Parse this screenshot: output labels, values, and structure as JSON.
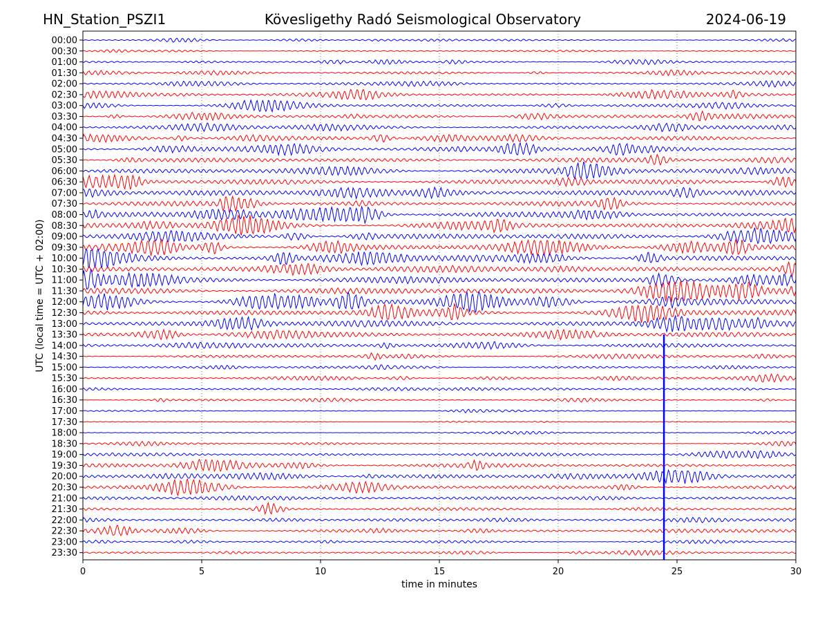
{
  "header": {
    "station": "HN_Station_PSZI1",
    "observatory": "Kövesligethy Radó Seismological Observatory",
    "date": "2024-06-19"
  },
  "chart_data": {
    "type": "line",
    "subtype": "helicorder",
    "xlabel": "time in minutes",
    "ylabel": "UTC (local time = UTC + 02:00)",
    "xlim": [
      0,
      30
    ],
    "x_ticks": [
      0,
      5,
      10,
      15,
      20,
      25,
      30
    ],
    "x_tick_labels": [
      "0",
      "5",
      "10",
      "15",
      "20",
      "25",
      "30"
    ],
    "grid": "vertical-dotted",
    "row_labels": [
      "00:00",
      "00:30",
      "01:00",
      "01:30",
      "02:00",
      "02:30",
      "03:00",
      "03:30",
      "04:00",
      "04:30",
      "05:00",
      "05:30",
      "06:00",
      "06:30",
      "07:00",
      "07:30",
      "08:00",
      "08:30",
      "09:00",
      "09:30",
      "10:00",
      "10:30",
      "11:00",
      "11:30",
      "12:00",
      "12:30",
      "13:00",
      "13:30",
      "14:00",
      "14:30",
      "15:00",
      "15:30",
      "16:00",
      "16:30",
      "17:00",
      "17:30",
      "18:00",
      "18:30",
      "19:00",
      "19:30",
      "20:00",
      "20:30",
      "21:00",
      "21:30",
      "22:00",
      "22:30",
      "23:00",
      "23:30"
    ],
    "trace_colors": [
      "#0000ff",
      "#ff0000"
    ],
    "relative_amplitude": [
      0.25,
      0.25,
      0.35,
      0.45,
      0.5,
      0.6,
      0.6,
      0.65,
      0.7,
      0.75,
      0.85,
      0.9,
      1.0,
      1.0,
      1.0,
      0.95,
      1.0,
      1.05,
      1.15,
      1.2,
      1.3,
      1.3,
      1.35,
      1.3,
      1.4,
      1.35,
      1.25,
      0.9,
      0.75,
      0.6,
      0.45,
      0.4,
      0.3,
      0.35,
      0.2,
      0.15,
      0.18,
      0.3,
      0.65,
      0.8,
      0.75,
      0.7,
      0.55,
      0.55,
      0.5,
      0.55,
      0.35,
      0.35
    ],
    "annotations": [
      {
        "type": "spike",
        "x_minutes": 24.45,
        "from_row": "13:30",
        "to_row": "23:30",
        "color": "#0000ff"
      }
    ]
  }
}
